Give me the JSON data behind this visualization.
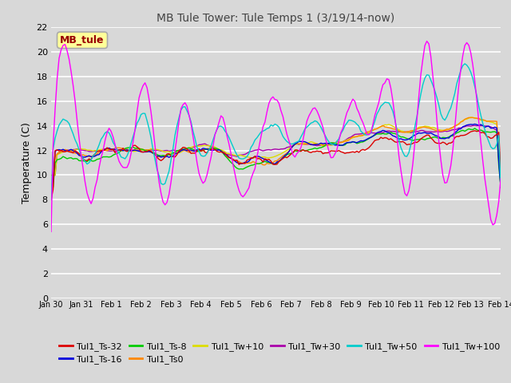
{
  "title": "MB Tule Tower: Tule Temps 1 (3/19/14-now)",
  "ylabel": "Temperature (C)",
  "ylim": [
    0,
    22
  ],
  "yticks": [
    0,
    2,
    4,
    6,
    8,
    10,
    12,
    14,
    16,
    18,
    20,
    22
  ],
  "n_days": 15,
  "xtick_labels": [
    "Jan 30",
    "Jan 31",
    "Feb 1",
    "Feb 2",
    "Feb 3",
    "Feb 4",
    "Feb 5",
    "Feb 6",
    "Feb 7",
    "Feb 8",
    "Feb 9",
    "Feb 10",
    "Feb 11",
    "Feb 12",
    "Feb 13",
    "Feb 14"
  ],
  "legend_label": "MB_tule",
  "series_colors": {
    "Tul1_Ts-32": "#dd0000",
    "Tul1_Ts-16": "#0000dd",
    "Tul1_Ts-8": "#00cc00",
    "Tul1_Ts0": "#ff8800",
    "Tul1_Tw+10": "#dddd00",
    "Tul1_Tw+30": "#aa00aa",
    "Tul1_Tw+50": "#00cccc",
    "Tul1_Tw+100": "#ff00ff"
  },
  "bg_color": "#d8d8d8",
  "grid_color": "#ffffff",
  "title_color": "#444444"
}
